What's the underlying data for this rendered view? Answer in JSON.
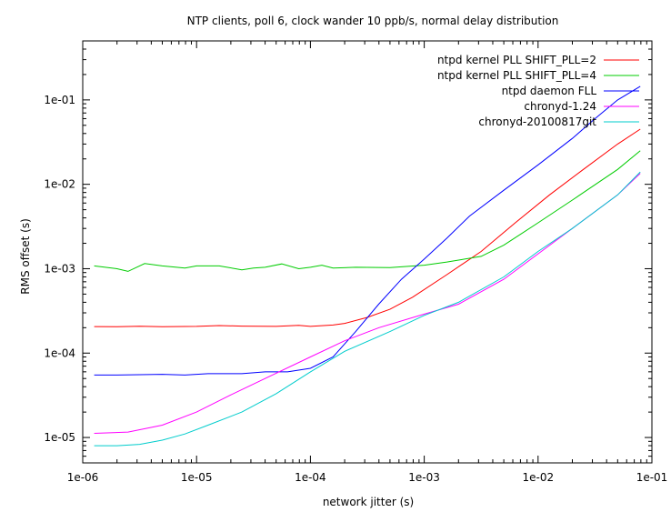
{
  "chart_data": {
    "type": "line",
    "title": "NTP clients, poll 6, clock wander 10 ppb/s, normal delay distribution",
    "xlabel": "network jitter (s)",
    "ylabel": "RMS offset (s)",
    "x_scale": "log",
    "y_scale": "log",
    "xlim": [
      1e-06,
      0.1
    ],
    "ylim": [
      5e-06,
      0.5
    ],
    "x_ticks": [
      {
        "value": 1e-06,
        "label": "1e-06"
      },
      {
        "value": 1e-05,
        "label": "1e-05"
      },
      {
        "value": 0.0001,
        "label": "1e-04"
      },
      {
        "value": 0.001,
        "label": "1e-03"
      },
      {
        "value": 0.01,
        "label": "1e-02"
      },
      {
        "value": 0.1,
        "label": "1e-01"
      }
    ],
    "y_ticks": [
      {
        "value": 1e-05,
        "label": "1e-05"
      },
      {
        "value": 0.0001,
        "label": "1e-04"
      },
      {
        "value": 0.001,
        "label": "1e-03"
      },
      {
        "value": 0.01,
        "label": "1e-02"
      },
      {
        "value": 0.1,
        "label": "1e-01"
      }
    ],
    "grid": false,
    "legend_position": "top-right",
    "series": [
      {
        "name": "ntpd kernel PLL SHIFT_PLL=2",
        "color": "#ff0000",
        "points": [
          [
            1.26e-06,
            0.000206
          ],
          [
            2e-06,
            0.000205
          ],
          [
            3.16e-06,
            0.000208
          ],
          [
            5e-06,
            0.000205
          ],
          [
            1e-05,
            0.000207
          ],
          [
            1.58e-05,
            0.000212
          ],
          [
            2.5e-05,
            0.000209
          ],
          [
            5e-05,
            0.000207
          ],
          [
            7.9e-05,
            0.000213
          ],
          [
            0.0001,
            0.000207
          ],
          [
            0.000158,
            0.000215
          ],
          [
            0.0002,
            0.000225
          ],
          [
            0.000316,
            0.000265
          ],
          [
            0.0005,
            0.00033
          ],
          [
            0.00079,
            0.00046
          ],
          [
            0.00158,
            0.00085
          ],
          [
            0.00316,
            0.0016
          ],
          [
            0.0063,
            0.0035
          ],
          [
            0.0126,
            0.0075
          ],
          [
            0.025,
            0.015
          ],
          [
            0.05,
            0.03
          ],
          [
            0.079,
            0.045
          ]
        ]
      },
      {
        "name": "ntpd kernel PLL SHIFT_PLL=4",
        "color": "#00cc00",
        "points": [
          [
            1.26e-06,
            0.00108
          ],
          [
            2e-06,
            0.001
          ],
          [
            2.5e-06,
            0.00093
          ],
          [
            3.5e-06,
            0.00115
          ],
          [
            5e-06,
            0.00108
          ],
          [
            7.9e-06,
            0.00102
          ],
          [
            1e-05,
            0.00108
          ],
          [
            1.58e-05,
            0.00108
          ],
          [
            2.5e-05,
            0.00097
          ],
          [
            3.16e-05,
            0.00102
          ],
          [
            4e-05,
            0.00104
          ],
          [
            5.6e-05,
            0.00114
          ],
          [
            7.9e-05,
            0.001
          ],
          [
            0.0001,
            0.00104
          ],
          [
            0.000126,
            0.0011
          ],
          [
            0.000158,
            0.00102
          ],
          [
            0.00025,
            0.00104
          ],
          [
            0.0005,
            0.00103
          ],
          [
            0.001,
            0.0011
          ],
          [
            0.00158,
            0.0012
          ],
          [
            0.00316,
            0.0014
          ],
          [
            0.005,
            0.0019
          ],
          [
            0.01,
            0.0035
          ],
          [
            0.02,
            0.0065
          ],
          [
            0.05,
            0.015
          ],
          [
            0.079,
            0.025
          ]
        ]
      },
      {
        "name": "ntpd daemon FLL",
        "color": "#0000ff",
        "points": [
          [
            1.26e-06,
            5.5e-05
          ],
          [
            2e-06,
            5.5e-05
          ],
          [
            5e-06,
            5.6e-05
          ],
          [
            7.9e-06,
            5.5e-05
          ],
          [
            1.26e-05,
            5.7e-05
          ],
          [
            2.5e-05,
            5.7e-05
          ],
          [
            4e-05,
            6e-05
          ],
          [
            6.3e-05,
            6e-05
          ],
          [
            0.0001,
            6.6e-05
          ],
          [
            0.000158,
            9e-05
          ],
          [
            0.00025,
            0.00018
          ],
          [
            0.000398,
            0.00038
          ],
          [
            0.00063,
            0.00075
          ],
          [
            0.001,
            0.0013
          ],
          [
            0.00158,
            0.0023
          ],
          [
            0.0025,
            0.0042
          ],
          [
            0.005,
            0.0085
          ],
          [
            0.01,
            0.017
          ],
          [
            0.02,
            0.035
          ],
          [
            0.0316,
            0.06
          ],
          [
            0.05,
            0.1
          ],
          [
            0.079,
            0.145
          ]
        ]
      },
      {
        "name": "chronyd-1.24",
        "color": "#ff00ff",
        "points": [
          [
            1.26e-06,
            1.12e-05
          ],
          [
            2.5e-06,
            1.16e-05
          ],
          [
            5e-06,
            1.4e-05
          ],
          [
            1e-05,
            2e-05
          ],
          [
            2e-05,
            3.2e-05
          ],
          [
            4e-05,
            5e-05
          ],
          [
            0.0001,
            9e-05
          ],
          [
            0.0002,
            0.00014
          ],
          [
            0.0004,
            0.0002
          ],
          [
            0.001,
            0.00029
          ],
          [
            0.002,
            0.00038
          ],
          [
            0.005,
            0.00075
          ],
          [
            0.01,
            0.0015
          ],
          [
            0.02,
            0.003
          ],
          [
            0.05,
            0.0075
          ],
          [
            0.079,
            0.0135
          ]
        ]
      },
      {
        "name": "chronyd-20100817git",
        "color": "#00cccc",
        "points": [
          [
            1.26e-06,
            8e-06
          ],
          [
            2e-06,
            8e-06
          ],
          [
            3.16e-06,
            8.3e-06
          ],
          [
            5e-06,
            9.3e-06
          ],
          [
            7.9e-06,
            1.1e-05
          ],
          [
            1.26e-05,
            1.4e-05
          ],
          [
            2.5e-05,
            2e-05
          ],
          [
            5e-05,
            3.3e-05
          ],
          [
            0.0001,
            6e-05
          ],
          [
            0.0002,
            0.000105
          ],
          [
            0.0005,
            0.00018
          ],
          [
            0.001,
            0.00028
          ],
          [
            0.002,
            0.0004
          ],
          [
            0.005,
            0.0008
          ],
          [
            0.01,
            0.0016
          ],
          [
            0.02,
            0.003
          ],
          [
            0.05,
            0.0075
          ],
          [
            0.079,
            0.014
          ]
        ]
      }
    ]
  }
}
